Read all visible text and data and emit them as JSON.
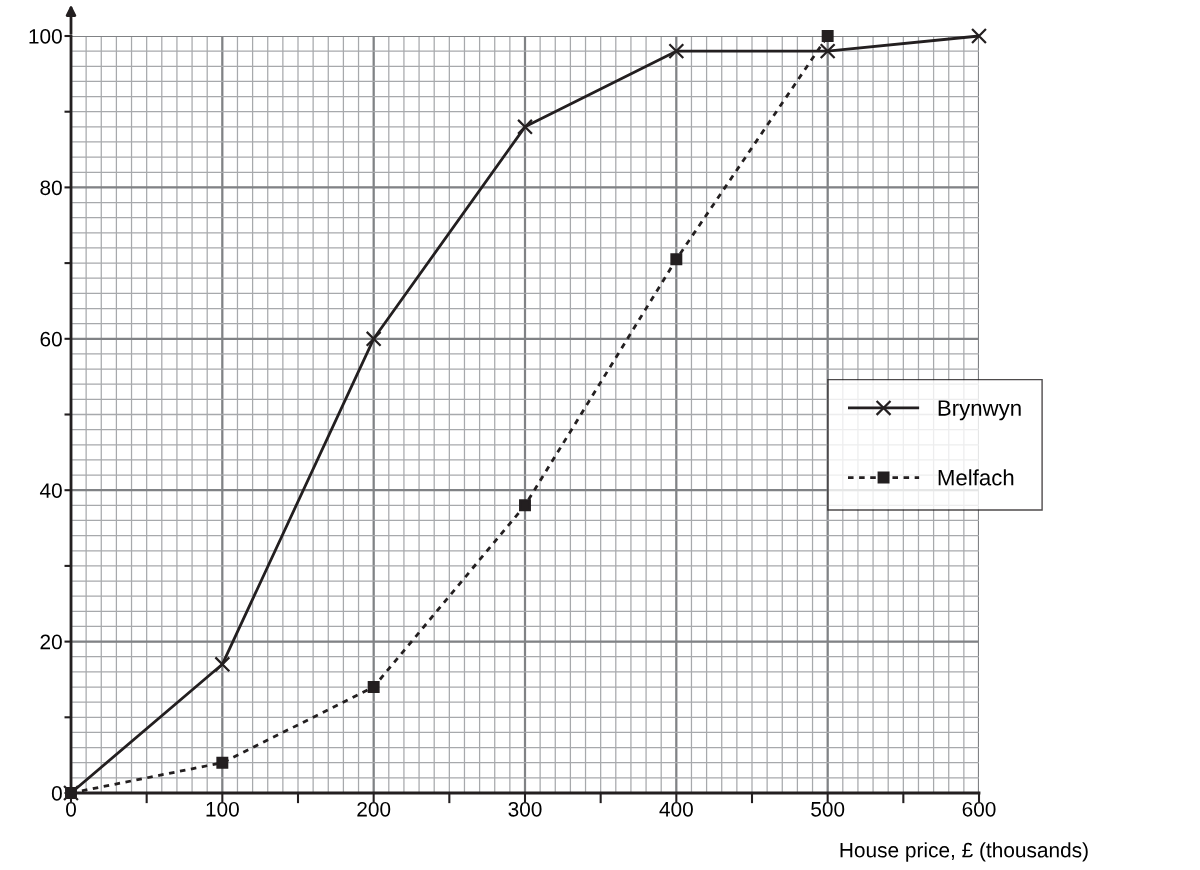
{
  "chart_data": {
    "type": "line",
    "xlabel": "House price, £ (thousands)",
    "xlim": [
      0,
      600
    ],
    "ylim": [
      0,
      100
    ],
    "xticks": [
      0,
      100,
      200,
      300,
      400,
      500,
      600
    ],
    "yticks": [
      0,
      20,
      40,
      60,
      80,
      100
    ],
    "grid": true,
    "legend": "right",
    "series": [
      {
        "name": "Brynwyn",
        "color": "#231f20",
        "marker": "cross",
        "line_style": "solid",
        "x": [
          0,
          100,
          200,
          300,
          400,
          500,
          600
        ],
        "values": [
          0,
          17,
          60,
          88,
          98,
          98,
          100
        ]
      },
      {
        "name": "Melfach",
        "color": "#231f20",
        "marker": "square",
        "line_style": "dotted",
        "x": [
          0,
          100,
          200,
          300,
          400,
          500
        ],
        "values": [
          0,
          4,
          14,
          38,
          70.5,
          100
        ]
      }
    ]
  }
}
